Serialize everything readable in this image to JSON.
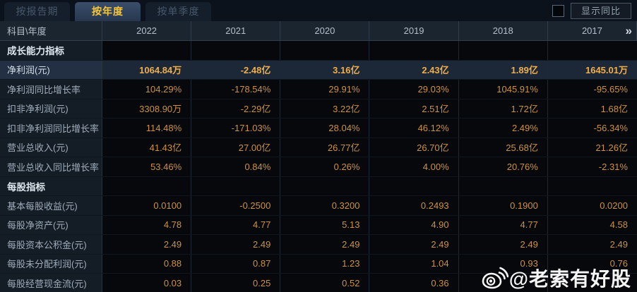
{
  "tabs": [
    {
      "label": "按报告期",
      "active": false
    },
    {
      "label": "按年度",
      "active": true
    },
    {
      "label": "按单季度",
      "active": false
    }
  ],
  "controls": {
    "show_yoy_checkbox_checked": false,
    "show_yoy_label": "显示同比"
  },
  "table": {
    "corner_label": "科目\\年度",
    "years": [
      "2022",
      "2021",
      "2020",
      "2019",
      "2018",
      "2017"
    ],
    "more_columns_icon": "»",
    "sections": [
      "成长能力指标",
      "每股指标"
    ],
    "rows": [
      {
        "type": "section",
        "label": "成长能力指标",
        "values": [
          "",
          "",
          "",
          "",
          "",
          ""
        ]
      },
      {
        "type": "data",
        "highlight": true,
        "label": "净利润(元)",
        "values": [
          "1064.84万",
          "-2.48亿",
          "3.16亿",
          "2.43亿",
          "1.89亿",
          "1645.01万"
        ]
      },
      {
        "type": "data",
        "label": "净利润同比增长率",
        "values": [
          "104.29%",
          "-178.54%",
          "29.91%",
          "29.03%",
          "1045.91%",
          "-95.65%"
        ]
      },
      {
        "type": "data",
        "label": "扣非净利润(元)",
        "values": [
          "3308.90万",
          "-2.29亿",
          "3.22亿",
          "2.51亿",
          "1.72亿",
          "1.68亿"
        ]
      },
      {
        "type": "data",
        "label": "扣非净利润同比增长率",
        "values": [
          "114.48%",
          "-171.03%",
          "28.04%",
          "46.12%",
          "2.49%",
          "-56.34%"
        ]
      },
      {
        "type": "data",
        "label": "营业总收入(元)",
        "values": [
          "41.43亿",
          "27.00亿",
          "26.77亿",
          "26.70亿",
          "25.68亿",
          "21.26亿"
        ]
      },
      {
        "type": "data",
        "label": "营业总收入同比增长率",
        "values": [
          "53.46%",
          "0.84%",
          "0.26%",
          "4.00%",
          "20.76%",
          "-2.31%"
        ]
      },
      {
        "type": "section",
        "label": "每股指标",
        "values": [
          "",
          "",
          "",
          "",
          "",
          ""
        ]
      },
      {
        "type": "data",
        "label": "基本每股收益(元)",
        "values": [
          "0.0100",
          "-0.2500",
          "0.3200",
          "0.2493",
          "0.1900",
          "0.0200"
        ]
      },
      {
        "type": "data",
        "label": "每股净资产(元)",
        "values": [
          "4.78",
          "4.77",
          "5.13",
          "4.90",
          "4.77",
          "4.58"
        ]
      },
      {
        "type": "data",
        "label": "每股资本公积金(元)",
        "values": [
          "2.49",
          "2.49",
          "2.49",
          "2.49",
          "2.49",
          "2.49"
        ]
      },
      {
        "type": "data",
        "label": "每股未分配利润(元)",
        "values": [
          "0.88",
          "0.87",
          "1.23",
          "1.04",
          "0.93",
          "0.76"
        ]
      },
      {
        "type": "data",
        "label": "每股经营现金流(元)",
        "values": [
          "0.03",
          "0.25",
          "0.52",
          "0.36",
          "",
          ""
        ]
      }
    ]
  },
  "watermark": {
    "icon": "weibo-icon",
    "text": "@老索有好股"
  },
  "colors": {
    "background": "#05070a",
    "tabbar_bg": "#0c121b",
    "tab_active_bg": "#2c3e57",
    "tab_active_text": "#f6c63d",
    "tab_inactive_text": "#46586c",
    "header_bg": "#1b2530",
    "label_col_bg": "#141c26",
    "label_text": "#9fadbb",
    "value_text": "#cd923e",
    "highlight_row_bg": "#1c2737",
    "highlight_value_text": "#f0af4a",
    "grid_line": "#1e2935",
    "watermark_text": "#ffffff"
  }
}
